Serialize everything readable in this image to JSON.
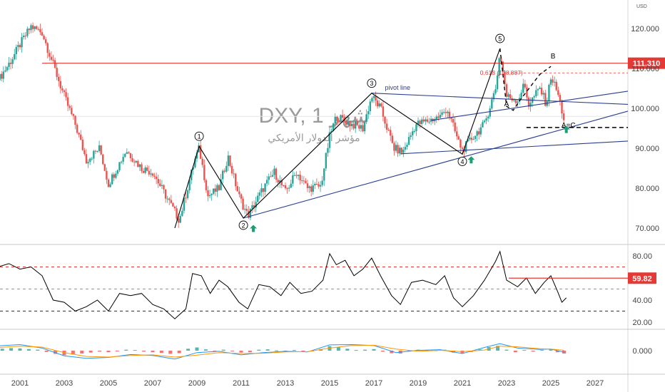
{
  "header": {
    "currency": "USD",
    "symbol_title": "DXY, 1 شهر",
    "subtitle": "مؤشر الدولار الأمريكي"
  },
  "colors": {
    "candle_up": "#26a69a",
    "candle_down": "#ef5350",
    "wave_line": "#000000",
    "trend_line": "#2a3f8f",
    "resistance": "#e53935",
    "arrow": "#1a9e78",
    "rsi_line": "#000000",
    "macd_line": "#2196f3",
    "signal_line": "#ff9800"
  },
  "chart_data": [
    {
      "type": "candlestick",
      "title": "",
      "ylim": [
        67,
        124
      ],
      "y_ticks": [
        "120.000",
        "110.000",
        "100.000",
        "90.000",
        "80.000",
        "70.000"
      ],
      "current_price_label": "111.310",
      "x_ticks": [
        "2001",
        "2003",
        "2005",
        "2007",
        "2009",
        "2011",
        "2013",
        "2015",
        "2017",
        "2019",
        "2021",
        "2023",
        "2025",
        "2027"
      ],
      "close_path": [
        {
          "x": 2000.0,
          "y": 107
        },
        {
          "x": 2000.6,
          "y": 112
        },
        {
          "x": 2001.0,
          "y": 116
        },
        {
          "x": 2001.5,
          "y": 120.5
        },
        {
          "x": 2002.0,
          "y": 119
        },
        {
          "x": 2002.5,
          "y": 111
        },
        {
          "x": 2003.0,
          "y": 103
        },
        {
          "x": 2003.5,
          "y": 96
        },
        {
          "x": 2004.0,
          "y": 87
        },
        {
          "x": 2004.6,
          "y": 90
        },
        {
          "x": 2005.0,
          "y": 81
        },
        {
          "x": 2005.8,
          "y": 89.5
        },
        {
          "x": 2006.5,
          "y": 85
        },
        {
          "x": 2007.0,
          "y": 84
        },
        {
          "x": 2007.6,
          "y": 78
        },
        {
          "x": 2008.2,
          "y": 72
        },
        {
          "x": 2008.9,
          "y": 87
        },
        {
          "x": 2009.1,
          "y": 90
        },
        {
          "x": 2009.5,
          "y": 78
        },
        {
          "x": 2010.0,
          "y": 80
        },
        {
          "x": 2010.4,
          "y": 88
        },
        {
          "x": 2010.9,
          "y": 78
        },
        {
          "x": 2011.3,
          "y": 73
        },
        {
          "x": 2012.0,
          "y": 80
        },
        {
          "x": 2012.5,
          "y": 84
        },
        {
          "x": 2013.0,
          "y": 79
        },
        {
          "x": 2013.5,
          "y": 84
        },
        {
          "x": 2014.0,
          "y": 80
        },
        {
          "x": 2014.6,
          "y": 80.5
        },
        {
          "x": 2015.0,
          "y": 93
        },
        {
          "x": 2015.3,
          "y": 98
        },
        {
          "x": 2016.0,
          "y": 96
        },
        {
          "x": 2016.5,
          "y": 95
        },
        {
          "x": 2016.9,
          "y": 103
        },
        {
          "x": 2017.3,
          "y": 100
        },
        {
          "x": 2017.9,
          "y": 90
        },
        {
          "x": 2018.3,
          "y": 89
        },
        {
          "x": 2018.9,
          "y": 96
        },
        {
          "x": 2019.5,
          "y": 97
        },
        {
          "x": 2020.0,
          "y": 98
        },
        {
          "x": 2020.3,
          "y": 100
        },
        {
          "x": 2020.8,
          "y": 92
        },
        {
          "x": 2021.0,
          "y": 89.5
        },
        {
          "x": 2021.5,
          "y": 93
        },
        {
          "x": 2022.0,
          "y": 96
        },
        {
          "x": 2022.5,
          "y": 105
        },
        {
          "x": 2022.7,
          "y": 114
        },
        {
          "x": 2023.0,
          "y": 103
        },
        {
          "x": 2023.5,
          "y": 102
        },
        {
          "x": 2023.8,
          "y": 106
        },
        {
          "x": 2024.0,
          "y": 101
        },
        {
          "x": 2024.5,
          "y": 105
        },
        {
          "x": 2024.8,
          "y": 101
        },
        {
          "x": 2025.0,
          "y": 108
        },
        {
          "x": 2025.3,
          "y": 104
        },
        {
          "x": 2025.6,
          "y": 97
        }
      ],
      "resistance_level": 111.31,
      "fib_level": {
        "label": "0.618 (108.887)",
        "value": 108.887
      },
      "elliott_waves": [
        {
          "label": "1",
          "x": 2009.1,
          "y": 90.5
        },
        {
          "label": "2",
          "x": 2011.1,
          "y": 72.5
        },
        {
          "label": "3",
          "x": 2016.9,
          "y": 103.8
        },
        {
          "label": "4",
          "x": 2021.0,
          "y": 88.5
        },
        {
          "label": "5",
          "x": 2022.7,
          "y": 115
        }
      ],
      "corrective_labels": [
        {
          "label": "A",
          "x": 2023.0,
          "y": 100.5
        },
        {
          "label": "B",
          "x": 2025.1,
          "y": 112.5
        },
        {
          "label": "A=C",
          "x": 2025.8,
          "y": 95.2
        }
      ],
      "pivot_line_label": "pivot line"
    },
    {
      "type": "line",
      "title": "",
      "ylim": [
        14,
        88
      ],
      "y_ticks": [
        "80.00",
        "60.00",
        "40.00",
        "20.00"
      ],
      "current_value_label": "59.82",
      "levels": [
        70,
        50,
        30
      ],
      "series": [
        {
          "values_x_y": [
            [
              2000.0,
              70
            ],
            [
              2000.5,
              73
            ],
            [
              2001.0,
              68
            ],
            [
              2001.5,
              70
            ],
            [
              2002.0,
              62
            ],
            [
              2002.5,
              40
            ],
            [
              2003.0,
              38
            ],
            [
              2003.5,
              30
            ],
            [
              2004.0,
              34
            ],
            [
              2004.5,
              40
            ],
            [
              2005.0,
              30
            ],
            [
              2005.5,
              46
            ],
            [
              2006.0,
              44
            ],
            [
              2006.5,
              46
            ],
            [
              2007.0,
              36
            ],
            [
              2007.5,
              32
            ],
            [
              2008.0,
              23
            ],
            [
              2008.5,
              32
            ],
            [
              2008.8,
              64
            ],
            [
              2009.2,
              62
            ],
            [
              2009.6,
              46
            ],
            [
              2010.0,
              58
            ],
            [
              2010.4,
              52
            ],
            [
              2010.9,
              38
            ],
            [
              2011.3,
              32
            ],
            [
              2011.8,
              54
            ],
            [
              2012.3,
              52
            ],
            [
              2012.8,
              44
            ],
            [
              2013.2,
              56
            ],
            [
              2013.7,
              46
            ],
            [
              2014.2,
              48
            ],
            [
              2014.7,
              58
            ],
            [
              2015.0,
              82
            ],
            [
              2015.3,
              72
            ],
            [
              2015.7,
              76
            ],
            [
              2016.1,
              62
            ],
            [
              2016.5,
              68
            ],
            [
              2016.9,
              78
            ],
            [
              2017.3,
              62
            ],
            [
              2017.8,
              44
            ],
            [
              2018.2,
              36
            ],
            [
              2018.7,
              56
            ],
            [
              2019.2,
              58
            ],
            [
              2019.8,
              54
            ],
            [
              2020.2,
              62
            ],
            [
              2020.6,
              42
            ],
            [
              2021.0,
              34
            ],
            [
              2021.5,
              44
            ],
            [
              2022.0,
              58
            ],
            [
              2022.5,
              75
            ],
            [
              2022.7,
              84
            ],
            [
              2023.0,
              58
            ],
            [
              2023.5,
              52
            ],
            [
              2023.9,
              60
            ],
            [
              2024.3,
              46
            ],
            [
              2024.7,
              56
            ],
            [
              2025.0,
              62
            ],
            [
              2025.3,
              48
            ],
            [
              2025.5,
              38
            ],
            [
              2025.7,
              42
            ]
          ]
        }
      ]
    },
    {
      "type": "bar",
      "title": "",
      "y_ticks": [
        "0.000"
      ],
      "ylim": [
        -3,
        2.8
      ],
      "histogram": [
        [
          2000.2,
          0.6
        ],
        [
          2000.6,
          0.8
        ],
        [
          2001.0,
          0.7
        ],
        [
          2001.4,
          0.5
        ],
        [
          2001.8,
          0.3
        ],
        [
          2002.2,
          -0.4
        ],
        [
          2002.6,
          -1.0
        ],
        [
          2003.0,
          -1.4
        ],
        [
          2003.4,
          -1.2
        ],
        [
          2003.8,
          -0.9
        ],
        [
          2004.2,
          -0.6
        ],
        [
          2004.6,
          -0.3
        ],
        [
          2005.0,
          -0.5
        ],
        [
          2005.4,
          -0.2
        ],
        [
          2005.8,
          0.3
        ],
        [
          2006.2,
          0.2
        ],
        [
          2006.6,
          -0.3
        ],
        [
          2007.0,
          -0.5
        ],
        [
          2007.4,
          -0.7
        ],
        [
          2007.8,
          -1.0
        ],
        [
          2008.2,
          -0.8
        ],
        [
          2008.6,
          0.6
        ],
        [
          2009.0,
          1.0
        ],
        [
          2009.4,
          0.4
        ],
        [
          2009.8,
          -0.3
        ],
        [
          2010.2,
          0.3
        ],
        [
          2010.6,
          -0.2
        ],
        [
          2011.0,
          -0.6
        ],
        [
          2011.4,
          -0.5
        ],
        [
          2011.8,
          0.3
        ],
        [
          2012.2,
          0.4
        ],
        [
          2012.6,
          0.1
        ],
        [
          2013.0,
          -0.2
        ],
        [
          2013.4,
          0.2
        ],
        [
          2013.8,
          -0.1
        ],
        [
          2014.2,
          -0.2
        ],
        [
          2014.6,
          0.5
        ],
        [
          2015.0,
          1.4
        ],
        [
          2015.4,
          1.1
        ],
        [
          2015.8,
          0.6
        ],
        [
          2016.2,
          0.2
        ],
        [
          2016.6,
          0.3
        ],
        [
          2017.0,
          0.5
        ],
        [
          2017.4,
          -0.3
        ],
        [
          2017.8,
          -0.8
        ],
        [
          2018.2,
          -0.9
        ],
        [
          2018.6,
          -0.2
        ],
        [
          2019.0,
          0.3
        ],
        [
          2019.4,
          0.2
        ],
        [
          2019.8,
          0.1
        ],
        [
          2020.2,
          0.3
        ],
        [
          2020.6,
          -0.6
        ],
        [
          2021.0,
          -0.8
        ],
        [
          2021.4,
          -0.4
        ],
        [
          2021.8,
          0.4
        ],
        [
          2022.2,
          1.1
        ],
        [
          2022.6,
          1.5
        ],
        [
          2023.0,
          0.3
        ],
        [
          2023.4,
          -0.5
        ],
        [
          2023.8,
          0.2
        ],
        [
          2024.2,
          -0.3
        ],
        [
          2024.6,
          0.2
        ],
        [
          2025.0,
          0.4
        ],
        [
          2025.3,
          -0.5
        ],
        [
          2025.6,
          -0.9
        ]
      ],
      "macd_line": [
        [
          2000.0,
          1.5
        ],
        [
          2001.0,
          1.9
        ],
        [
          2002.0,
          0.8
        ],
        [
          2003.0,
          -1.6
        ],
        [
          2004.0,
          -2.4
        ],
        [
          2005.0,
          -2.1
        ],
        [
          2006.0,
          -1.2
        ],
        [
          2007.0,
          -1.5
        ],
        [
          2008.0,
          -2.6
        ],
        [
          2009.0,
          -0.6
        ],
        [
          2010.0,
          -0.2
        ],
        [
          2011.0,
          -1.3
        ],
        [
          2012.0,
          -0.6
        ],
        [
          2013.0,
          -0.2
        ],
        [
          2014.0,
          -0.4
        ],
        [
          2015.0,
          1.8
        ],
        [
          2016.0,
          1.9
        ],
        [
          2017.0,
          1.6
        ],
        [
          2018.0,
          -0.6
        ],
        [
          2019.0,
          0.1
        ],
        [
          2020.0,
          0.3
        ],
        [
          2021.0,
          -0.9
        ],
        [
          2022.0,
          1.0
        ],
        [
          2022.7,
          2.2
        ],
        [
          2023.5,
          0.8
        ],
        [
          2024.5,
          0.4
        ],
        [
          2025.0,
          0.5
        ],
        [
          2025.6,
          -0.5
        ]
      ],
      "signal_line": [
        [
          2000.0,
          1.0
        ],
        [
          2001.0,
          1.4
        ],
        [
          2002.0,
          1.1
        ],
        [
          2003.0,
          -0.6
        ],
        [
          2004.0,
          -1.8
        ],
        [
          2005.0,
          -2.0
        ],
        [
          2006.0,
          -1.5
        ],
        [
          2007.0,
          -1.3
        ],
        [
          2008.0,
          -2.0
        ],
        [
          2009.0,
          -1.4
        ],
        [
          2010.0,
          -0.6
        ],
        [
          2011.0,
          -0.9
        ],
        [
          2012.0,
          -0.8
        ],
        [
          2013.0,
          -0.4
        ],
        [
          2014.0,
          -0.3
        ],
        [
          2015.0,
          0.8
        ],
        [
          2016.0,
          1.6
        ],
        [
          2017.0,
          1.7
        ],
        [
          2018.0,
          0.5
        ],
        [
          2019.0,
          -0.2
        ],
        [
          2020.0,
          0.1
        ],
        [
          2021.0,
          -0.3
        ],
        [
          2022.0,
          0.2
        ],
        [
          2022.7,
          1.4
        ],
        [
          2023.5,
          1.2
        ],
        [
          2024.5,
          0.6
        ],
        [
          2025.0,
          0.5
        ],
        [
          2025.6,
          0.1
        ]
      ]
    }
  ]
}
